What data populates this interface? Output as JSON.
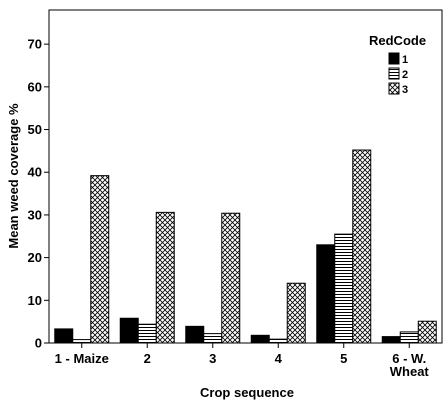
{
  "chart_data": {
    "type": "bar",
    "xlabel": "Crop sequence",
    "ylabel": "Mean weed coverage %",
    "categories": [
      "1 - Maize",
      "2",
      "3",
      "4",
      "5",
      "6 - W.\nWheat"
    ],
    "ylim": [
      0,
      78
    ],
    "yticks": [
      0,
      10,
      20,
      30,
      40,
      50,
      60,
      70
    ],
    "legend": {
      "title": "RedCode",
      "position": "top-right"
    },
    "series": [
      {
        "name": "1",
        "pattern": "solid",
        "values": [
          3.3,
          5.8,
          3.9,
          1.8,
          23.0,
          1.5
        ]
      },
      {
        "name": "2",
        "pattern": "horizontal-lines",
        "values": [
          0.8,
          4.4,
          2.2,
          0.9,
          25.5,
          2.6
        ]
      },
      {
        "name": "3",
        "pattern": "crosshatch",
        "values": [
          39.2,
          30.6,
          30.4,
          14.0,
          45.2,
          5.1
        ]
      }
    ],
    "grid": false
  }
}
